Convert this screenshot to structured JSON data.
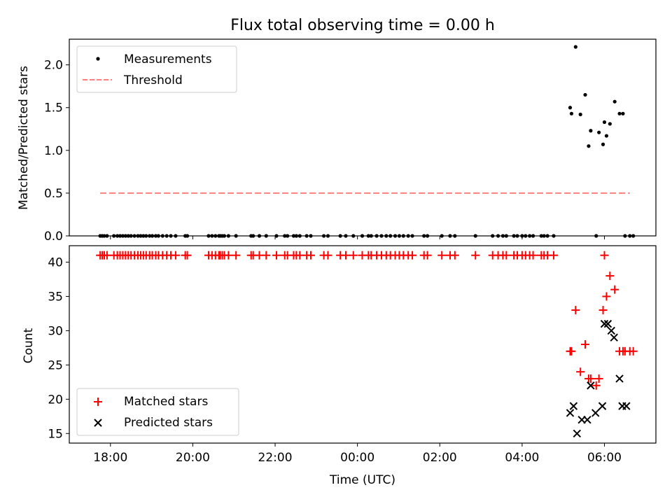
{
  "figure": {
    "title": "Flux total observing time = 0.00 h"
  },
  "chart_data": [
    {
      "type": "scatter",
      "ylabel": "Matched/Predicted stars",
      "ylim": [
        0,
        2.3
      ],
      "yticks": [
        0.0,
        0.5,
        1.0,
        1.5,
        2.0
      ],
      "ytick_labels": [
        "0.0",
        "0.5",
        "1.0",
        "1.5",
        "2.0"
      ],
      "legend": {
        "placement": "upper-left",
        "entries": [
          "Measurements",
          "Threshold"
        ]
      },
      "colors": {
        "measurements": "#000000",
        "threshold": "#ff7f7f"
      },
      "series": [
        {
          "name": "Measurements",
          "style": "dot",
          "x": [
            "17:45",
            "17:48",
            "17:51",
            "17:55",
            "18:05",
            "18:10",
            "18:14",
            "18:18",
            "18:22",
            "18:26",
            "18:30",
            "18:35",
            "18:40",
            "18:44",
            "18:48",
            "18:52",
            "18:57",
            "19:01",
            "19:06",
            "19:10",
            "19:16",
            "19:22",
            "19:28",
            "19:35",
            "19:49",
            "19:52",
            "20:23",
            "20:28",
            "20:33",
            "20:38",
            "20:40",
            "20:43",
            "20:46",
            "20:52",
            "21:03",
            "21:25",
            "21:28",
            "21:37",
            "21:47",
            "22:02",
            "22:14",
            "22:18",
            "22:27",
            "22:31",
            "22:36",
            "22:46",
            "22:52",
            "23:11",
            "23:17",
            "23:35",
            "23:43",
            "23:54",
            "24:07",
            "24:16",
            "24:20",
            "24:28",
            "24:35",
            "24:42",
            "24:48",
            "24:55",
            "25:01",
            "25:07",
            "25:14",
            "25:20",
            "25:37",
            "25:42",
            "26:03",
            "26:15",
            "26:22",
            "26:52",
            "27:17",
            "27:25",
            "27:32",
            "27:37",
            "27:48",
            "27:53",
            "28:00",
            "28:05",
            "28:11",
            "28:16",
            "28:28",
            "28:32",
            "28:37",
            "28:46",
            "29:10",
            "29:12",
            "29:18",
            "29:25",
            "29:32",
            "29:37",
            "29:40",
            "29:48",
            "29:52",
            "29:58",
            "30:00",
            "30:03",
            "30:08",
            "30:15",
            "30:22",
            "30:27",
            "30:30",
            "30:37",
            "30:42"
          ],
          "y": [
            0,
            0,
            0,
            0,
            0,
            0,
            0,
            0,
            0,
            0,
            0,
            0,
            0,
            0,
            0,
            0,
            0,
            0,
            0,
            0,
            0,
            0,
            0,
            0,
            0,
            0,
            0,
            0,
            0,
            0,
            0,
            0,
            0,
            0,
            0,
            0,
            0,
            0,
            0,
            0,
            0,
            0,
            0,
            0,
            0,
            0,
            0,
            0,
            0,
            0,
            0,
            0,
            0,
            0,
            0,
            0,
            0,
            0,
            0,
            0,
            0,
            0,
            0,
            0,
            0,
            0,
            0,
            0,
            0,
            0,
            0,
            0,
            0,
            0,
            0,
            0,
            0,
            0,
            0,
            0,
            0,
            0,
            0,
            0,
            1.5,
            1.43,
            2.21,
            1.42,
            1.65,
            1.05,
            1.23,
            0,
            1.21,
            1.07,
            1.33,
            1.17,
            1.31,
            1.57,
            1.43,
            1.43,
            0,
            0,
            0
          ]
        },
        {
          "name": "Threshold",
          "style": "dashed",
          "x": [
            "17:45",
            "30:37"
          ],
          "y": [
            0.5,
            0.5
          ]
        }
      ]
    },
    {
      "type": "scatter",
      "xlabel": "Time (UTC)",
      "ylabel": "Count",
      "ylim": [
        13.6,
        42.4
      ],
      "xlim": [
        "17:00",
        "31:15"
      ],
      "xticks": [
        "18:00",
        "20:00",
        "22:00",
        "24:00",
        "26:00",
        "28:00",
        "30:00"
      ],
      "xtick_labels": [
        "18:00",
        "20:00",
        "22:00",
        "00:00",
        "02:00",
        "04:00",
        "06:00"
      ],
      "yticks": [
        15,
        20,
        25,
        30,
        35,
        40
      ],
      "ytick_labels": [
        "15",
        "20",
        "25",
        "30",
        "35",
        "40"
      ],
      "legend": {
        "placement": "lower-left",
        "entries": [
          "Matched stars",
          "Predicted stars"
        ]
      },
      "colors": {
        "matched": "#ff0000",
        "predicted": "#000000"
      },
      "series": [
        {
          "name": "Matched stars",
          "marker": "plus",
          "x": [
            "17:45",
            "17:48",
            "17:51",
            "17:55",
            "18:05",
            "18:10",
            "18:14",
            "18:18",
            "18:22",
            "18:26",
            "18:30",
            "18:35",
            "18:40",
            "18:44",
            "18:48",
            "18:52",
            "18:57",
            "19:01",
            "19:06",
            "19:10",
            "19:16",
            "19:22",
            "19:28",
            "19:35",
            "19:49",
            "19:52",
            "20:23",
            "20:28",
            "20:33",
            "20:38",
            "20:40",
            "20:43",
            "20:46",
            "20:52",
            "21:03",
            "21:25",
            "21:28",
            "21:37",
            "21:47",
            "22:02",
            "22:14",
            "22:18",
            "22:27",
            "22:31",
            "22:36",
            "22:46",
            "22:52",
            "23:11",
            "23:17",
            "23:35",
            "23:43",
            "23:54",
            "24:07",
            "24:16",
            "24:20",
            "24:28",
            "24:35",
            "24:42",
            "24:48",
            "24:55",
            "25:01",
            "25:07",
            "25:14",
            "25:20",
            "25:37",
            "25:42",
            "26:03",
            "26:15",
            "26:22",
            "26:52",
            "27:17",
            "27:25",
            "27:32",
            "27:37",
            "27:48",
            "27:53",
            "28:00",
            "28:05",
            "28:11",
            "28:16",
            "28:28",
            "28:32",
            "28:37",
            "28:46",
            "29:10",
            "29:12",
            "29:18",
            "29:25",
            "29:32",
            "29:37",
            "29:40",
            "29:48",
            "29:52",
            "29:58",
            "30:00",
            "30:03",
            "30:08",
            "30:15",
            "30:22",
            "30:27",
            "30:30",
            "30:37",
            "30:42"
          ],
          "y": [
            41,
            41,
            41,
            41,
            41,
            41,
            41,
            41,
            41,
            41,
            41,
            41,
            41,
            41,
            41,
            41,
            41,
            41,
            41,
            41,
            41,
            41,
            41,
            41,
            41,
            41,
            41,
            41,
            41,
            41,
            41,
            41,
            41,
            41,
            41,
            41,
            41,
            41,
            41,
            41,
            41,
            41,
            41,
            41,
            41,
            41,
            41,
            41,
            41,
            41,
            41,
            41,
            41,
            41,
            41,
            41,
            41,
            41,
            41,
            41,
            41,
            41,
            41,
            41,
            41,
            41,
            41,
            41,
            41,
            41,
            41,
            41,
            41,
            41,
            41,
            41,
            41,
            41,
            41,
            41,
            41,
            41,
            41,
            41,
            27,
            27,
            33,
            24,
            28,
            23,
            23,
            22,
            23,
            33,
            41,
            35,
            38,
            36,
            27,
            27,
            27,
            27,
            27
          ]
        },
        {
          "name": "Predicted stars",
          "marker": "x",
          "x": [
            "29:10",
            "29:15",
            "29:20",
            "29:27",
            "29:35",
            "29:40",
            "29:47",
            "29:57",
            "30:00",
            "30:05",
            "30:10",
            "30:14",
            "30:22",
            "30:26",
            "30:32"
          ],
          "y": [
            18,
            19,
            15,
            17,
            17,
            22,
            18,
            19,
            31,
            31,
            30,
            29,
            23,
            19,
            19
          ]
        }
      ]
    }
  ]
}
